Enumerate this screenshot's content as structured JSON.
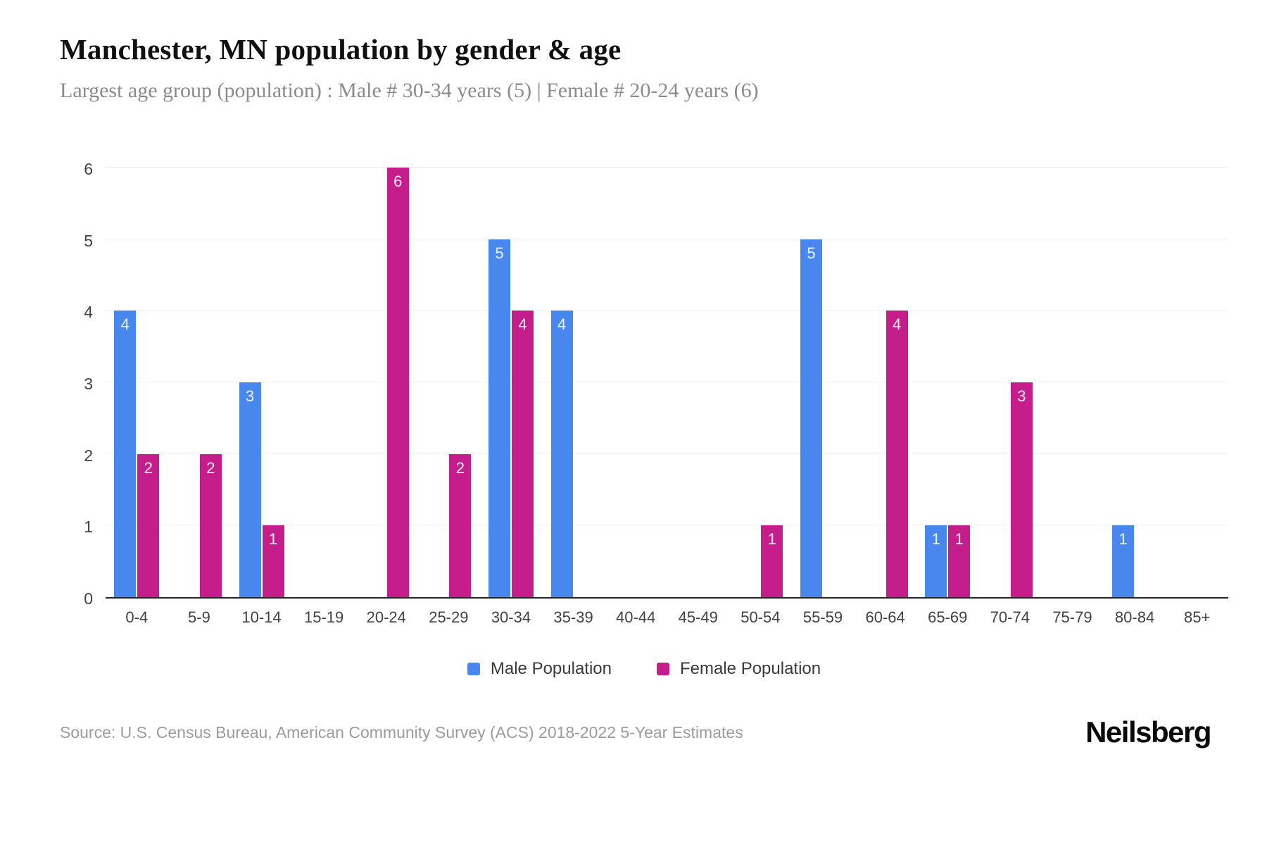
{
  "header": {
    "title": "Manchester, MN population by gender & age",
    "subtitle": "Largest age group (population) : Male # 30-34 years (5) | Female # 20-24 years (6)"
  },
  "chart_data": {
    "type": "bar",
    "title": "Manchester, MN population by gender & age",
    "categories": [
      "0-4",
      "5-9",
      "10-14",
      "15-19",
      "20-24",
      "25-29",
      "30-34",
      "35-39",
      "40-44",
      "45-49",
      "50-54",
      "55-59",
      "60-64",
      "65-69",
      "70-74",
      "75-79",
      "80-84",
      "85+"
    ],
    "series": [
      {
        "name": "Male Population",
        "color": "#4887ee",
        "values": [
          4,
          0,
          3,
          0,
          0,
          0,
          5,
          4,
          0,
          0,
          0,
          5,
          0,
          1,
          0,
          0,
          1,
          0
        ]
      },
      {
        "name": "Female Population",
        "color": "#c51e8c",
        "values": [
          2,
          2,
          1,
          0,
          6,
          2,
          4,
          0,
          0,
          0,
          1,
          0,
          4,
          1,
          3,
          0,
          0,
          0
        ]
      }
    ],
    "xlabel": "",
    "ylabel": "",
    "ylim": [
      0,
      6
    ],
    "yticks": [
      0,
      1,
      2,
      3,
      4,
      5,
      6
    ],
    "grid": true,
    "value_labels": true,
    "legend_position": "bottom"
  },
  "footer": {
    "source": "Source: U.S. Census Bureau, American Community Survey (ACS) 2018-2022 5-Year Estimates",
    "logo": "Neilsberg"
  }
}
